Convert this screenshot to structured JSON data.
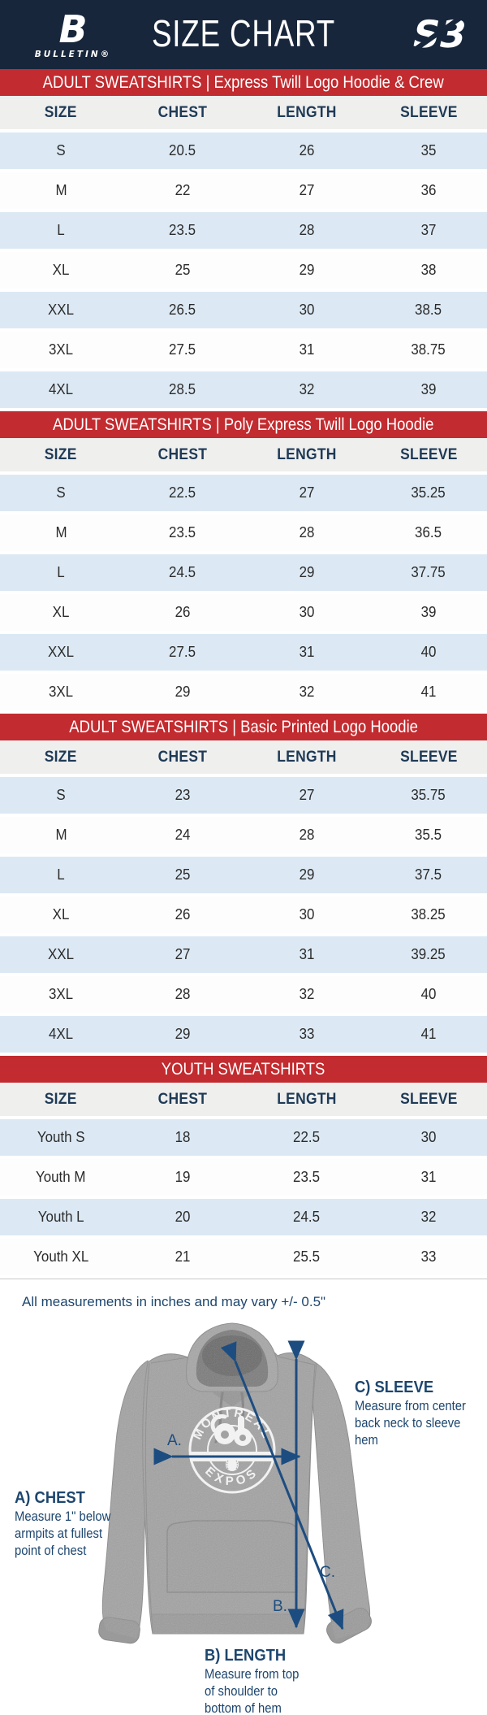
{
  "header": {
    "title": "SIZE CHART",
    "brand_left": {
      "symbol": "B",
      "name": "BULLETIN®"
    },
    "brand_right": {
      "symbol": "S3"
    }
  },
  "columns": [
    "SIZE",
    "CHEST",
    "LENGTH",
    "SLEEVE"
  ],
  "tables": [
    {
      "banner": "ADULT SWEATSHIRTS | Express Twill Logo Hoodie & Crew",
      "rows": [
        [
          "S",
          "20.5",
          "26",
          "35"
        ],
        [
          "M",
          "22",
          "27",
          "36"
        ],
        [
          "L",
          "23.5",
          "28",
          "37"
        ],
        [
          "XL",
          "25",
          "29",
          "38"
        ],
        [
          "XXL",
          "26.5",
          "30",
          "38.5"
        ],
        [
          "3XL",
          "27.5",
          "31",
          "38.75"
        ],
        [
          "4XL",
          "28.5",
          "32",
          "39"
        ]
      ]
    },
    {
      "banner": "ADULT SWEATSHIRTS | Poly Express Twill Logo Hoodie",
      "rows": [
        [
          "S",
          "22.5",
          "27",
          "35.25"
        ],
        [
          "M",
          "23.5",
          "28",
          "36.5"
        ],
        [
          "L",
          "24.5",
          "29",
          "37.75"
        ],
        [
          "XL",
          "26",
          "30",
          "39"
        ],
        [
          "XXL",
          "27.5",
          "31",
          "40"
        ],
        [
          "3XL",
          "29",
          "32",
          "41"
        ]
      ]
    },
    {
      "banner": "ADULT SWEATSHIRTS | Basic Printed Logo Hoodie",
      "rows": [
        [
          "S",
          "23",
          "27",
          "35.75"
        ],
        [
          "M",
          "24",
          "28",
          "35.5"
        ],
        [
          "L",
          "25",
          "29",
          "37.5"
        ],
        [
          "XL",
          "26",
          "30",
          "38.25"
        ],
        [
          "XXL",
          "27",
          "31",
          "39.25"
        ],
        [
          "3XL",
          "28",
          "32",
          "40"
        ],
        [
          "4XL",
          "29",
          "33",
          "41"
        ]
      ]
    },
    {
      "banner": "YOUTH SWEATSHIRTS",
      "rows": [
        [
          "Youth S",
          "18",
          "22.5",
          "30"
        ],
        [
          "Youth M",
          "19",
          "23.5",
          "31"
        ],
        [
          "Youth L",
          "20",
          "24.5",
          "32"
        ],
        [
          "Youth XL",
          "21",
          "25.5",
          "33"
        ]
      ]
    }
  ],
  "note": "All measurements in inches and may vary +/- 0.5\"",
  "diagram": {
    "chest": {
      "marker": "A.",
      "label": "A) CHEST",
      "desc": "Measure 1\" below armpits at fullest point of chest"
    },
    "length": {
      "marker": "B.",
      "label": "B) LENGTH",
      "desc": "Measure from top of shoulder to bottom of hem"
    },
    "sleeve": {
      "marker": "C.",
      "label": "C) SLEEVE",
      "desc": "Measure from center back neck to sleeve hem"
    },
    "logo": {
      "top": "MONTREAL",
      "bottom": "EXPOS"
    }
  },
  "colors": {
    "navy": "#17263B",
    "red": "#C22B2F",
    "row_blue": "#DCE9F4",
    "row_white": "#FDFDFD",
    "thead_bg": "#EFEFEE",
    "table_text": "#2B2B2B",
    "header_text": "#1E3A56",
    "label_navy": "#1D466E",
    "arrow_navy": "#1D4D80"
  }
}
